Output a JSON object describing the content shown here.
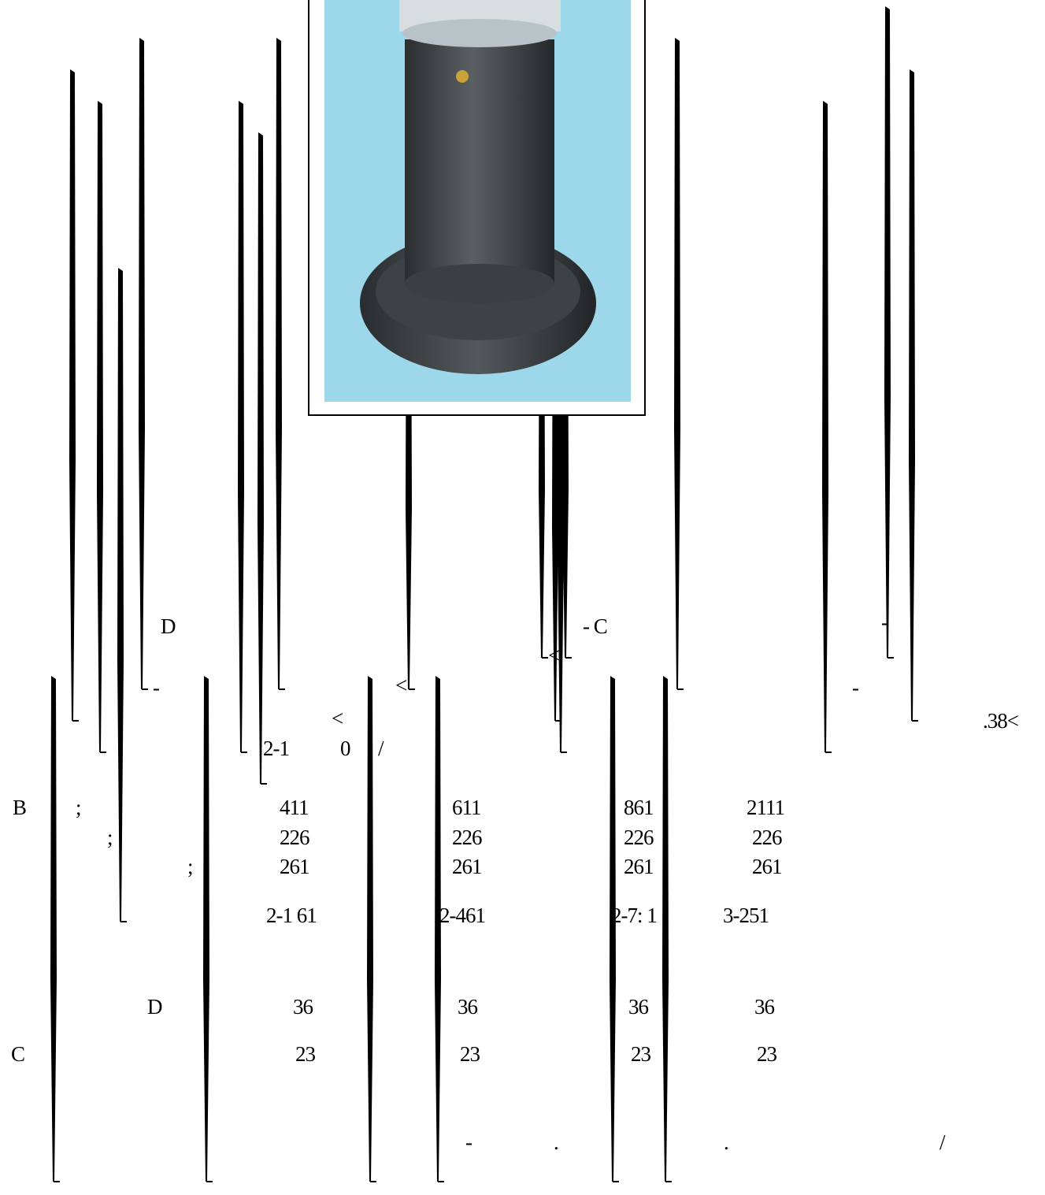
{
  "fragments": [
    "D",
    "- C",
    "-",
    "-",
    "<",
    "<",
    "-",
    "<",
    ".38<",
    "2-1",
    "0",
    "/"
  ],
  "table": {
    "rows": [
      [
        "B",
        ";",
        "411",
        "611",
        "861",
        "2111"
      ],
      [
        ";",
        "226",
        "226",
        "226",
        "226"
      ],
      [
        ";",
        "261",
        "261",
        "261",
        "261"
      ],
      [
        "2-1 61",
        "2-461",
        "2-7: 1",
        "3-251"
      ],
      [
        "D",
        "36",
        "36",
        "36",
        "36"
      ],
      [
        "C",
        "23",
        "23",
        "23",
        "23"
      ]
    ]
  },
  "footer": [
    "-",
    ".",
    ".",
    "/"
  ]
}
